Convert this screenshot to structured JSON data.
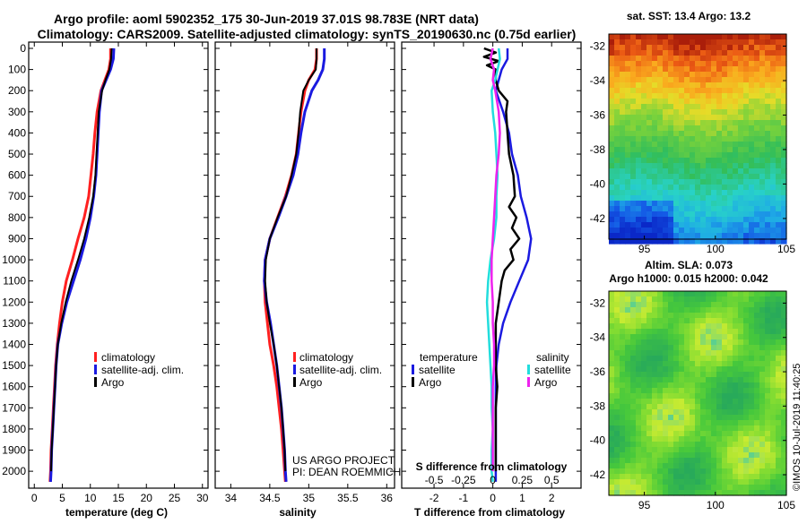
{
  "header": {
    "title_line1": "Argo profile: aoml 5902352_175 30-Jun-2019 37.01S 98.783E (NRT data)",
    "title_line2": "Climatology: CARS2009. Satellite-adjusted climatology: synTS_20190630.nc (0.75d earlier)"
  },
  "colors": {
    "climatology": "#ff2020",
    "satellite": "#1a1ae0",
    "argo": "#000000",
    "sat_salinity": "#22dddd",
    "argo_salinity": "#ee22ee"
  },
  "chart_data": [
    {
      "type": "line",
      "name": "temperature",
      "xlabel": "temperature (deg C)",
      "ylabel": "",
      "xlim": [
        -1,
        31
      ],
      "ylim": [
        2080,
        0
      ],
      "xticks": [
        "0",
        "5",
        "10",
        "15",
        "20",
        "25",
        "30"
      ],
      "yticks": [
        "0",
        "100",
        "200",
        "300",
        "400",
        "500",
        "600",
        "700",
        "800",
        "900",
        "1000",
        "1100",
        "1200",
        "1300",
        "1400",
        "1500",
        "1600",
        "1700",
        "1800",
        "1900",
        "2000"
      ],
      "legend": [
        "climatology",
        "satellite-adj. clim.",
        "Argo"
      ],
      "series": [
        {
          "name": "climatology",
          "depth": [
            0,
            50,
            100,
            150,
            200,
            300,
            400,
            500,
            600,
            700,
            800,
            900,
            1000,
            1100,
            1200,
            1300,
            1400,
            1500,
            1600,
            1700,
            1800,
            1900,
            2000,
            2050
          ],
          "values": [
            13.6,
            13.6,
            13.3,
            12.6,
            11.9,
            11.2,
            10.8,
            10.5,
            10.1,
            9.7,
            8.9,
            7.8,
            6.8,
            5.7,
            5.0,
            4.5,
            4.1,
            3.8,
            3.6,
            3.4,
            3.2,
            3.0,
            2.9,
            2.8
          ]
        },
        {
          "name": "satellite-adj. clim.",
          "depth": [
            0,
            50,
            100,
            150,
            200,
            300,
            400,
            500,
            600,
            700,
            800,
            900,
            1000,
            1100,
            1200,
            1300,
            1400,
            1500,
            1600,
            1700,
            1800,
            1900,
            2000,
            2050
          ],
          "values": [
            14.2,
            14.1,
            13.6,
            12.8,
            12.0,
            11.6,
            11.4,
            11.2,
            11.0,
            10.6,
            10.0,
            9.2,
            8.2,
            7.0,
            5.8,
            4.9,
            4.2,
            3.9,
            3.7,
            3.5,
            3.3,
            3.1,
            3.0,
            2.9
          ]
        },
        {
          "name": "Argo",
          "depth": [
            0,
            50,
            100,
            150,
            200,
            300,
            400,
            500,
            600,
            700,
            800,
            900,
            1000,
            1100,
            1200,
            1300,
            1400,
            1500,
            1600,
            1700,
            1800,
            1900,
            2000
          ],
          "values": [
            13.8,
            13.7,
            13.4,
            12.7,
            12.1,
            11.5,
            11.3,
            11.1,
            10.9,
            10.5,
            9.8,
            8.9,
            7.8,
            6.6,
            5.6,
            4.8,
            4.2,
            3.9,
            3.7,
            3.5,
            3.3,
            3.1,
            3.0
          ]
        }
      ]
    },
    {
      "type": "line",
      "name": "salinity",
      "xlabel": "salinity",
      "xlim": [
        33.8,
        36.1
      ],
      "ylim": [
        2080,
        0
      ],
      "xticks": [
        "34",
        "34.5",
        "35",
        "35.5",
        "36"
      ],
      "legend": [
        "climatology",
        "satellite-adj. clim.",
        "Argo"
      ],
      "annotation": [
        "US ARGO PROJECT",
        "PI: DEAN ROEMMICH"
      ],
      "series": [
        {
          "name": "climatology",
          "depth": [
            0,
            50,
            100,
            150,
            200,
            300,
            400,
            500,
            600,
            700,
            800,
            900,
            1000,
            1100,
            1200,
            1300,
            1400,
            1500,
            1600,
            1700,
            1800,
            1900,
            2000,
            2050
          ],
          "values": [
            35.1,
            35.1,
            35.08,
            35.0,
            34.95,
            34.9,
            34.87,
            34.84,
            34.78,
            34.7,
            34.6,
            34.5,
            34.44,
            34.43,
            34.44,
            34.47,
            34.5,
            34.55,
            34.59,
            34.62,
            34.65,
            34.67,
            34.69,
            34.7
          ]
        },
        {
          "name": "satellite-adj. clim.",
          "depth": [
            0,
            50,
            100,
            150,
            200,
            300,
            400,
            500,
            600,
            700,
            800,
            900,
            1000,
            1100,
            1200,
            1300,
            1400,
            1500,
            1600,
            1700,
            1800,
            1900,
            2000,
            2050
          ],
          "values": [
            35.2,
            35.2,
            35.18,
            35.12,
            35.04,
            34.95,
            34.9,
            34.86,
            34.8,
            34.71,
            34.61,
            34.5,
            34.44,
            34.43,
            34.46,
            34.51,
            34.55,
            34.59,
            34.62,
            34.65,
            34.67,
            34.69,
            34.7,
            34.71
          ]
        },
        {
          "name": "Argo",
          "depth": [
            0,
            50,
            100,
            150,
            200,
            300,
            400,
            500,
            600,
            700,
            800,
            900,
            1000,
            1100,
            1200,
            1300,
            1400,
            1500,
            1600,
            1700,
            1800,
            1900,
            2000
          ],
          "values": [
            35.1,
            35.1,
            35.09,
            35.0,
            34.93,
            34.89,
            34.87,
            34.84,
            34.78,
            34.71,
            34.6,
            34.5,
            34.45,
            34.44,
            34.46,
            34.5,
            34.55,
            34.59,
            34.62,
            34.65,
            34.67,
            34.69,
            34.7
          ]
        }
      ]
    },
    {
      "type": "line",
      "name": "difference",
      "xlabel": "T difference from climatology",
      "xlabel_top": "S difference from climatology",
      "xlim": [
        -3.1,
        3.0
      ],
      "ylim": [
        2080,
        0
      ],
      "xticks": [
        "-2",
        "-1",
        "0",
        "1",
        "2"
      ],
      "xticks_top": [
        "-0.5",
        "-0.25",
        "0",
        "0.25",
        "0.5"
      ],
      "legend_titles": [
        "temperature",
        "salinity"
      ],
      "legend_left": [
        "satellite",
        "Argo"
      ],
      "legend_right": [
        "satellite",
        "Argo"
      ],
      "series": [
        {
          "name": "T satellite",
          "depth": [
            0,
            50,
            100,
            150,
            200,
            300,
            400,
            500,
            600,
            700,
            800,
            900,
            1000,
            1100,
            1200,
            1300,
            1400,
            1500,
            1600,
            1700,
            1800,
            1900,
            2000,
            2050
          ],
          "values": [
            0.5,
            0.5,
            0.3,
            0.2,
            0.1,
            0.35,
            0.55,
            0.65,
            0.85,
            0.95,
            1.15,
            1.3,
            1.2,
            0.9,
            0.6,
            0.35,
            0.2,
            0.12,
            0.1,
            0.1,
            0.1,
            0.1,
            0.1,
            0.1
          ]
        },
        {
          "name": "T Argo",
          "depth": [
            0,
            20,
            40,
            60,
            80,
            100,
            150,
            200,
            250,
            300,
            400,
            500,
            600,
            700,
            750,
            800,
            850,
            900,
            950,
            1000,
            1050,
            1100,
            1200,
            1300,
            1400,
            1500,
            1600,
            1700,
            1800,
            1900,
            2000
          ],
          "values": [
            -0.3,
            0.1,
            -0.3,
            0.2,
            -0.2,
            0.1,
            0.1,
            0.2,
            0.5,
            0.45,
            0.5,
            0.55,
            0.7,
            0.75,
            0.55,
            0.8,
            0.65,
            0.9,
            0.6,
            0.7,
            0.4,
            0.3,
            0.2,
            0.1,
            0.1,
            0.1,
            0.15,
            0.1,
            0.1,
            0.1,
            0.1
          ]
        },
        {
          "name": "S satellite",
          "depth": [
            0,
            50,
            100,
            150,
            200,
            300,
            400,
            500,
            600,
            700,
            800,
            900,
            1000,
            1100,
            1200,
            1300,
            1400,
            1500,
            1600,
            1700,
            1800,
            1900,
            2000,
            2050
          ],
          "values": [
            0.05,
            0.06,
            0.04,
            0.02,
            -0.01,
            0.0,
            0.02,
            0.03,
            0.04,
            0.03,
            0.03,
            0.01,
            -0.02,
            -0.04,
            -0.05,
            -0.04,
            -0.03,
            -0.02,
            -0.01,
            -0.01,
            0.0,
            -0.01,
            -0.01,
            0.0
          ]
        },
        {
          "name": "S Argo",
          "depth": [
            0,
            50,
            100,
            150,
            200,
            300,
            400,
            500,
            600,
            700,
            800,
            900,
            1000,
            1100,
            1200,
            1300,
            1400,
            1500,
            1600,
            1700,
            1800,
            1900,
            2000
          ],
          "values": [
            0.0,
            -0.02,
            0.01,
            0.0,
            0.02,
            0.05,
            0.06,
            0.05,
            0.03,
            0.02,
            0.01,
            0.0,
            -0.01,
            -0.01,
            0.0,
            0.0,
            0.01,
            0.01,
            0.0,
            0.0,
            0.0,
            0.0,
            0.0
          ]
        }
      ]
    },
    {
      "type": "heatmap",
      "name": "sst_map",
      "title": "sat. SST: 13.4 Argo: 13.2",
      "xticks": [
        "95",
        "100",
        "105"
      ],
      "yticks": [
        "-32",
        "-34",
        "-36",
        "-38",
        "-40",
        "-42"
      ],
      "xlim": [
        92.5,
        105
      ],
      "ylim": [
        -43.2,
        -31.3
      ]
    },
    {
      "type": "heatmap",
      "name": "sla_map",
      "title_line1": "Altim. SLA: 0.073",
      "title_line2": "Argo h1000: 0.015 h2000: 0.042",
      "xticks": [
        "95",
        "100",
        "105"
      ],
      "yticks": [
        "-32",
        "-34",
        "-36",
        "-38",
        "-40",
        "-42"
      ],
      "xlim": [
        92.5,
        105
      ],
      "ylim": [
        -43.2,
        -31.3
      ]
    }
  ],
  "footer": {
    "credit": "©IMOS 10-Jul-2019 11:40:25"
  }
}
